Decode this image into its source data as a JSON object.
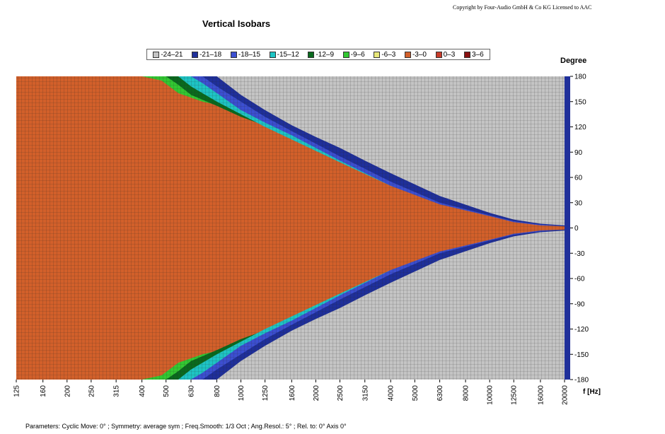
{
  "copyright": "Copyright by Four-Audio GmbH & Co KG   Licensed to AAC",
  "chart_data": {
    "type": "heatmap",
    "title": "Vertical Isobars",
    "ylabel": "Degree",
    "xlabel": "f [Hz]",
    "x_scale": "log",
    "xlim": [
      125,
      20000
    ],
    "ylim": [
      -180,
      180
    ],
    "x_ticks": [
      "125",
      "160",
      "200",
      "250",
      "315",
      "400",
      "500",
      "630",
      "800",
      "1000",
      "1250",
      "1600",
      "2000",
      "2500",
      "3150",
      "4000",
      "5000",
      "6300",
      "8000",
      "10000",
      "12500",
      "16000",
      "20000"
    ],
    "y_ticks": [
      "180",
      "150",
      "120",
      "90",
      "60",
      "30",
      "0",
      "-30",
      "-60",
      "-90",
      "-120",
      "-150",
      "-180"
    ],
    "legend": [
      {
        "label": "-24–21",
        "color": "#c4c4c4"
      },
      {
        "label": "-21–18",
        "color": "#1f2f9a"
      },
      {
        "label": "-18–15",
        "color": "#3c4fd1"
      },
      {
        "label": "-15–12",
        "color": "#1ec4c4"
      },
      {
        "label": "-12–9",
        "color": "#0a6a1e"
      },
      {
        "label": "-9–6",
        "color": "#32c832"
      },
      {
        "label": "-6–3",
        "color": "#e8e87a"
      },
      {
        "label": "-3–0",
        "color": "#d2602a"
      },
      {
        "label": "0–3",
        "color": "#c83c2a"
      },
      {
        "label": "3–6",
        "color": "#8a1010"
      }
    ],
    "contours": [
      {
        "band": "-9–6",
        "freq": [
          125,
          400,
          480,
          560,
          700,
          1000,
          1600,
          2500,
          4000,
          6300,
          10000,
          12500,
          16000,
          20000
        ],
        "angle": [
          180,
          180,
          175,
          160,
          150,
          140,
          120,
          90,
          60,
          40,
          22,
          12,
          6,
          4
        ]
      },
      {
        "band": "-12–9",
        "freq": [
          125,
          500,
          560,
          630,
          800,
          1000,
          1600,
          2500,
          4000,
          6300,
          10000,
          12500,
          16000,
          20000
        ],
        "angle": [
          180,
          180,
          170,
          158,
          145,
          132,
          110,
          85,
          55,
          35,
          18,
          10,
          5,
          3
        ]
      },
      {
        "band": "-15–12",
        "freq": [
          125,
          560,
          630,
          800,
          1000,
          1250,
          1600,
          2500,
          4000,
          6300,
          10000,
          12500,
          16000,
          20000
        ],
        "angle": [
          180,
          180,
          168,
          150,
          135,
          120,
          105,
          78,
          50,
          30,
          15,
          8,
          4,
          2
        ]
      },
      {
        "band": "-18–15",
        "freq": [
          125,
          630,
          700,
          800,
          1000,
          1250,
          1600,
          2500,
          4000,
          6300,
          10000,
          12500,
          16000,
          20000
        ],
        "angle": [
          180,
          180,
          172,
          160,
          140,
          125,
          110,
          80,
          50,
          28,
          14,
          7,
          3,
          2
        ]
      },
      {
        "band": "-21–18",
        "freq": [
          125,
          700,
          800,
          1000,
          1250,
          1600,
          2000,
          2500,
          4000,
          6300,
          10000,
          12500,
          16000,
          20000
        ],
        "angle": [
          180,
          180,
          168,
          150,
          132,
          115,
          100,
          85,
          55,
          30,
          15,
          8,
          4,
          2
        ]
      },
      {
        "band": "-24–21",
        "freq": [
          125,
          800,
          1000,
          1250,
          1600,
          2000,
          2500,
          3150,
          4000,
          6300,
          10000,
          12500,
          16000,
          20000
        ],
        "angle": [
          180,
          180,
          158,
          140,
          122,
          108,
          95,
          80,
          65,
          38,
          18,
          10,
          5,
          3
        ]
      }
    ]
  },
  "parameters": "Parameters:   Cyclic Move:  0°   ;   Symmetry: average sym   ;   Freq.Smooth: 1/3  Oct   ;   Ang.Resol.: 5°   ;   Rel. to: 0° Axis   0°"
}
